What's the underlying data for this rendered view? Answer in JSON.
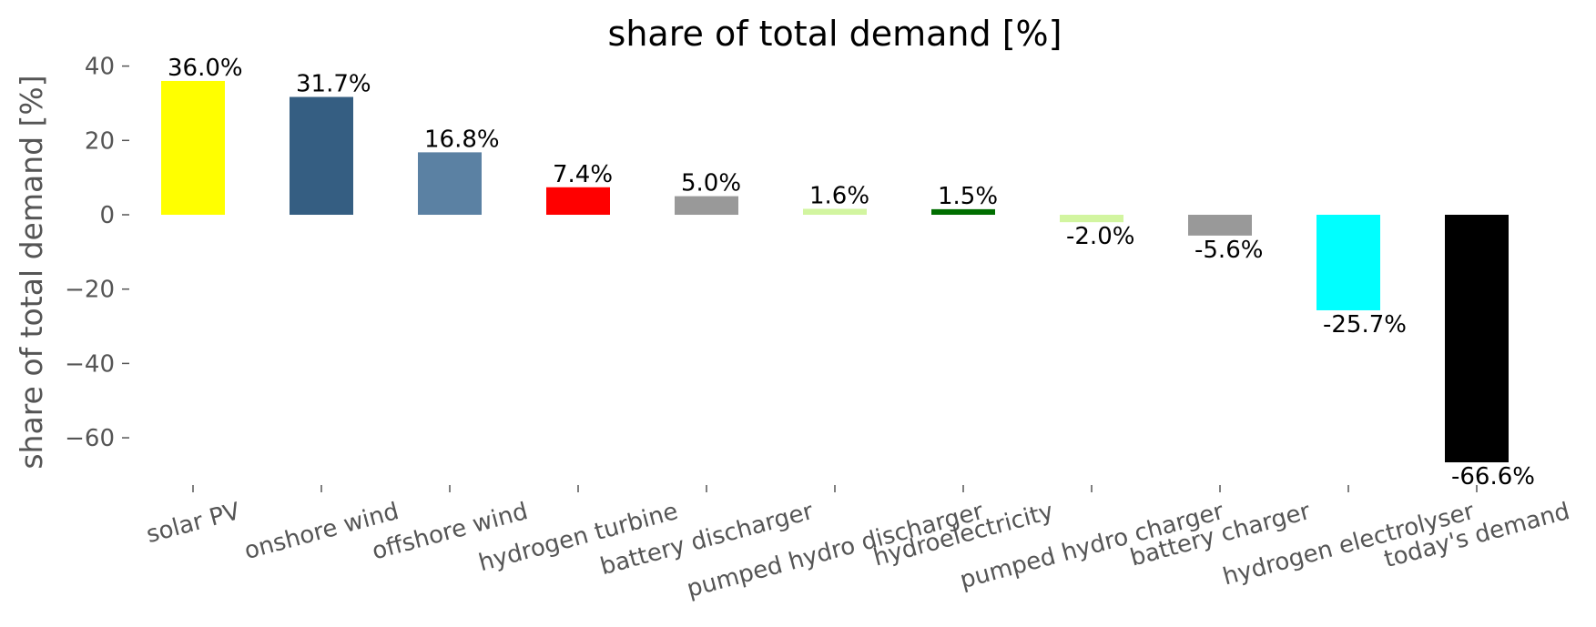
{
  "chart_data": {
    "type": "bar",
    "title": "share of total demand [%]",
    "y_label": "share of total demand [%]",
    "categories": [
      "solar PV",
      "onshore wind",
      "offshore wind",
      "hydrogen turbine",
      "battery discharger",
      "pumped hydro discharger",
      "hydroelectricity",
      "pumped hydro charger",
      "battery charger",
      "hydrogen electrolyser",
      "today's demand"
    ],
    "values": [
      36.0,
      31.7,
      16.8,
      7.4,
      5.0,
      1.6,
      1.5,
      -2.0,
      -5.6,
      -25.7,
      -66.6
    ],
    "value_labels": [
      "36.0%",
      "31.7%",
      "16.8%",
      "7.4%",
      "5.0%",
      "1.6%",
      "1.5%",
      "-2.0%",
      "-5.6%",
      "-25.7%",
      "-66.6%"
    ],
    "colors": [
      "#ffff00",
      "#355e82",
      "#5b81a3",
      "#ff0000",
      "#999999",
      "#d2f5a0",
      "#006e00",
      "#d2f5a0",
      "#999999",
      "#00ffff",
      "#000000"
    ],
    "ylim": [
      -71.73,
      41.13
    ],
    "yticks": [
      {
        "value": -60,
        "label": "−60"
      },
      {
        "value": -40,
        "label": "−40"
      },
      {
        "value": -20,
        "label": "−20"
      },
      0,
      20,
      40
    ],
    "grid": false
  }
}
